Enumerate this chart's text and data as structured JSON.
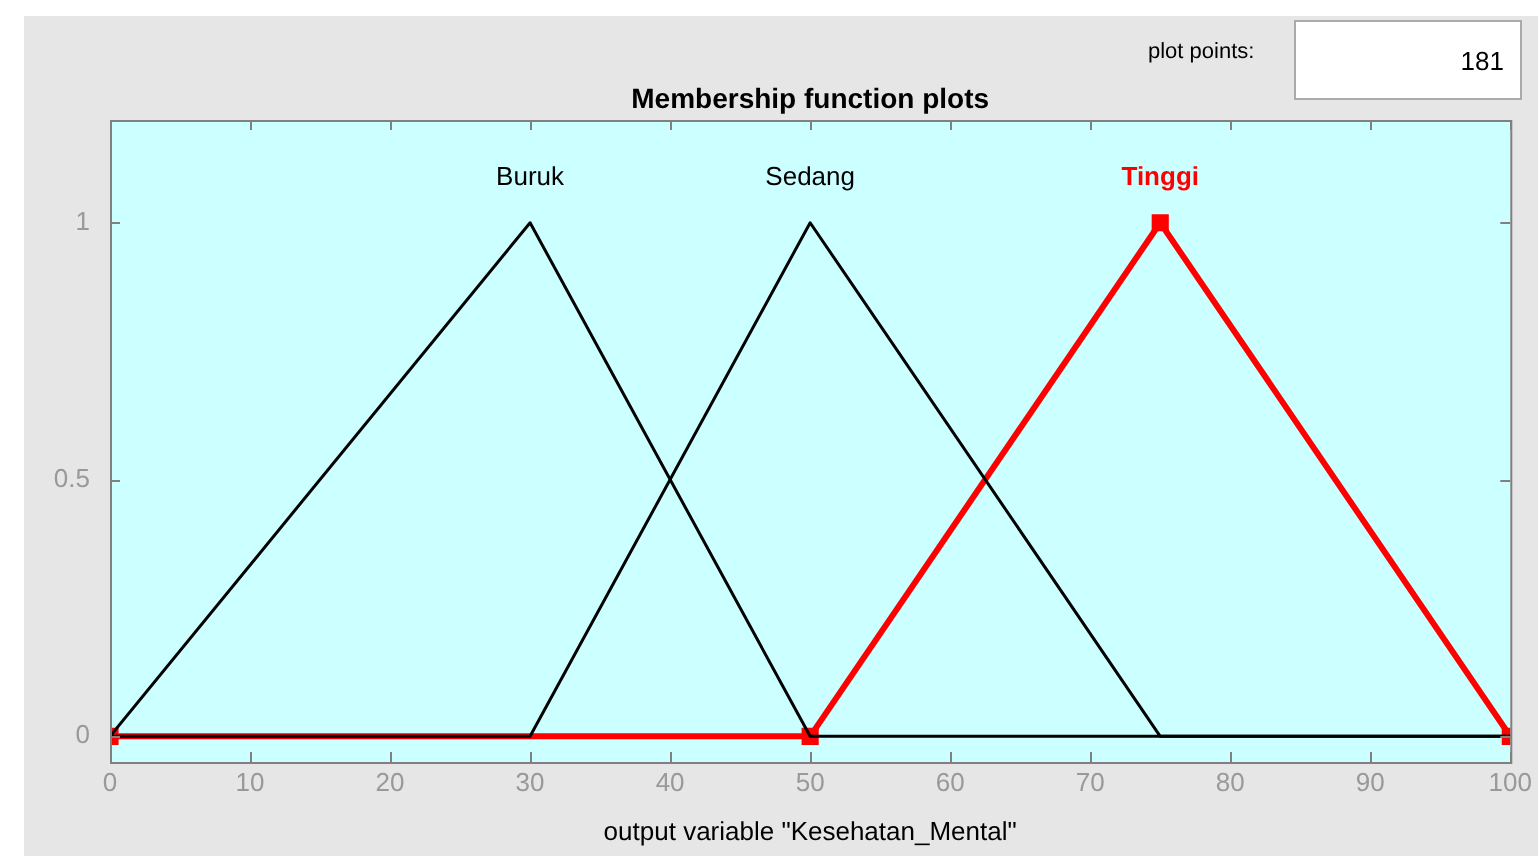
{
  "chart_data": {
    "type": "line",
    "title": "Membership function plots",
    "xlabel": "output variable \"Kesehatan_Mental\"",
    "annotations": [
      "plot points:",
      "181"
    ],
    "xlim": [
      0,
      100
    ],
    "xticks": [
      0,
      10,
      20,
      30,
      40,
      50,
      60,
      70,
      80,
      90,
      100
    ],
    "ylim": [
      -0.05,
      1.2
    ],
    "yticks": [
      0,
      0.5,
      1
    ],
    "grid": false,
    "legend": false,
    "series": [
      {
        "name": "Buruk",
        "color": "#000000",
        "x": [
          0,
          30,
          50,
          100
        ],
        "values": [
          0,
          1,
          0,
          0
        ]
      },
      {
        "name": "Sedang",
        "color": "#000000",
        "x": [
          0,
          30,
          50,
          75,
          100
        ],
        "values": [
          0,
          0,
          1,
          0,
          0
        ]
      },
      {
        "name": "Tinggi",
        "color": "#ff0000",
        "x": [
          0,
          50,
          75,
          100
        ],
        "values": [
          0,
          0,
          1,
          0
        ],
        "marker": "square"
      }
    ]
  }
}
